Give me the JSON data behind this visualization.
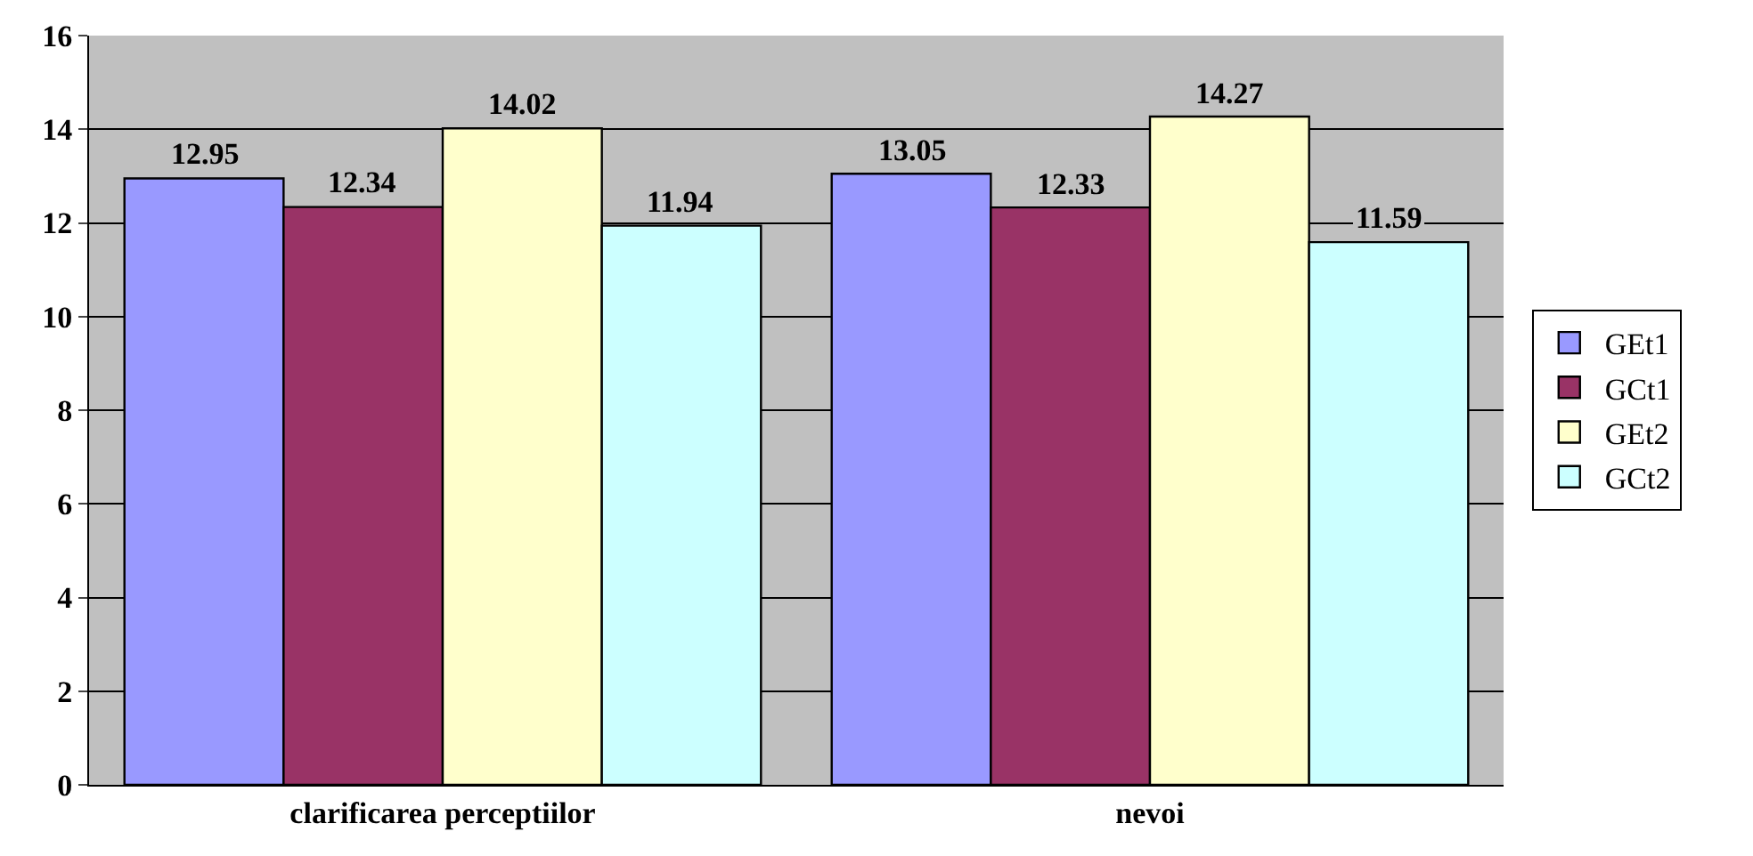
{
  "chart_data": {
    "type": "bar",
    "categories": [
      "clarificarea perceptiilor",
      "nevoi"
    ],
    "series": [
      {
        "name": "GEt1",
        "color": "#9999ff",
        "values": [
          12.95,
          13.05
        ]
      },
      {
        "name": "GCt1",
        "color": "#993366",
        "values": [
          12.34,
          12.33
        ]
      },
      {
        "name": "GEt2",
        "color": "#ffffcc",
        "values": [
          14.02,
          14.27
        ]
      },
      {
        "name": "GCt2",
        "color": "#ccffff",
        "values": [
          11.94,
          11.59
        ]
      }
    ],
    "ylim": [
      0,
      16
    ],
    "yticks": [
      0,
      2,
      4,
      6,
      8,
      10,
      12,
      14,
      16
    ],
    "grid": "y",
    "legend": "right",
    "data_labels": true
  }
}
